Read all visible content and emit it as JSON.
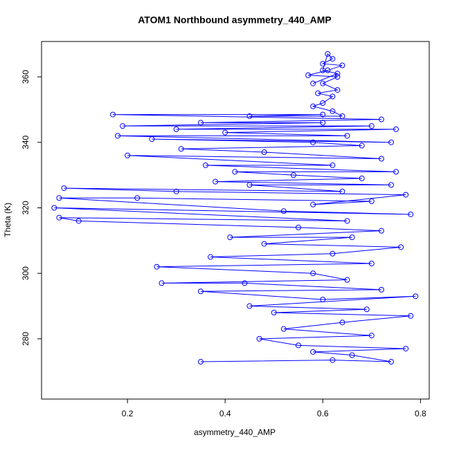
{
  "chart_data": {
    "type": "line",
    "markers": true,
    "title": "ATOM1 Northbound asymmetry_440_AMP",
    "x_label": "asymmetry_440_AMP",
    "y_label": "Theta (K)",
    "color": "#0000ff",
    "x": [
      0.35,
      0.62,
      0.74,
      0.66,
      0.58,
      0.77,
      0.55,
      0.47,
      0.7,
      0.52,
      0.64,
      0.78,
      0.5,
      0.69,
      0.45,
      0.79,
      0.6,
      0.35,
      0.72,
      0.44,
      0.27,
      0.65,
      0.58,
      0.26,
      0.7,
      0.37,
      0.62,
      0.76,
      0.48,
      0.66,
      0.41,
      0.72,
      0.55,
      0.1,
      0.06,
      0.65,
      0.05,
      0.78,
      0.52,
      0.06,
      0.22,
      0.7,
      0.58,
      0.77,
      0.3,
      0.07,
      0.64,
      0.45,
      0.74,
      0.38,
      0.68,
      0.54,
      0.42,
      0.75,
      0.36,
      0.62,
      0.2,
      0.72,
      0.48,
      0.31,
      0.68,
      0.58,
      0.25,
      0.74,
      0.18,
      0.65,
      0.4,
      0.75,
      0.3,
      0.7,
      0.19,
      0.6,
      0.35,
      0.72,
      0.17,
      0.6,
      0.45,
      0.64,
      0.62,
      0.58,
      0.6,
      0.62,
      0.59,
      0.63,
      0.6,
      0.63,
      0.57,
      0.61,
      0.64,
      0.6,
      0.62,
      0.61,
      0.6,
      0.63,
      0.58
    ],
    "values": [
      273,
      273.5,
      273,
      275,
      276,
      277,
      278,
      280,
      281,
      283,
      285,
      287,
      288,
      289,
      290,
      293,
      292,
      294.5,
      295,
      297,
      297,
      298,
      300,
      302,
      303,
      305,
      306,
      308,
      309,
      311,
      311,
      313,
      314,
      316,
      317,
      316,
      320,
      318,
      319,
      323,
      323,
      322,
      321,
      324,
      325,
      326,
      325,
      327,
      327,
      328,
      329,
      330,
      331,
      331,
      333,
      333,
      336,
      335,
      337,
      338,
      339,
      340,
      341,
      340,
      342,
      342,
      343,
      344,
      344,
      345,
      345,
      346,
      346,
      347,
      348.5,
      348.5,
      348,
      348,
      349.5,
      351,
      352,
      354,
      355,
      356,
      358,
      360,
      360.5,
      362,
      363.5,
      364,
      365.5,
      367,
      362,
      361,
      358
    ],
    "xlim": [
      0.024,
      0.818
    ],
    "ylim": [
      261.6,
      370.8
    ],
    "xticks": [
      0.2,
      0.4,
      0.6,
      0.8
    ],
    "yticks": [
      280,
      300,
      320,
      340,
      360
    ]
  }
}
